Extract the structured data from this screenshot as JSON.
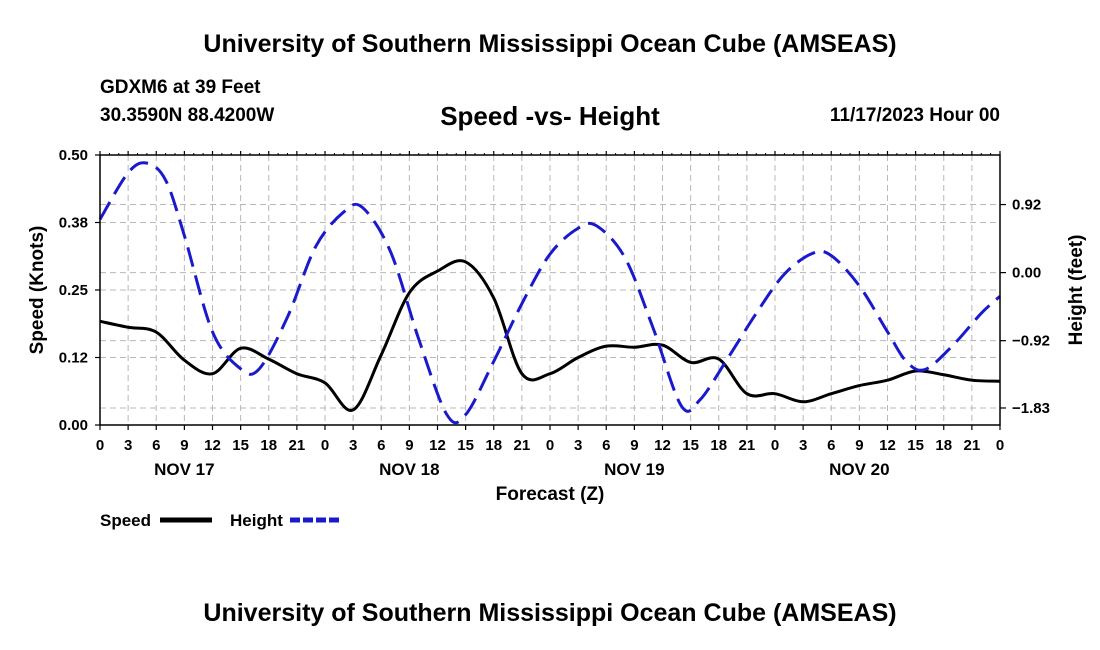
{
  "header": {
    "title": "University of Southern Mississippi Ocean Cube (AMSEAS)",
    "station": "GDXM6 at 39 Feet",
    "coords": "30.3590N  88.4200W",
    "subtitle": "Speed -vs- Height",
    "datetime": "11/17/2023 Hour 00"
  },
  "footer": {
    "title": "University of Southern Mississippi Ocean Cube (AMSEAS)"
  },
  "chart_data": {
    "type": "line",
    "title": "Speed -vs- Height",
    "xlabel": "Forecast (Z)",
    "ylabel_left": "Speed (Knots)",
    "ylabel_right": "Height (feet)",
    "x_range_hours": [
      0,
      96
    ],
    "y_left_range": [
      0,
      0.5
    ],
    "y_right_range": [
      -2.06,
      1.59
    ],
    "y_left_ticks": [
      {
        "value": 0.0,
        "label": "0.00"
      },
      {
        "value": 0.125,
        "label": "0.12"
      },
      {
        "value": 0.25,
        "label": "0.25"
      },
      {
        "value": 0.375,
        "label": "0.38"
      },
      {
        "value": 0.5,
        "label": "0.50"
      }
    ],
    "y_right_ticks": [
      {
        "value": -1.83,
        "label": "−1.83"
      },
      {
        "value": -0.92,
        "label": "−0.92"
      },
      {
        "value": 0.0,
        "label": "0.00"
      },
      {
        "value": 0.92,
        "label": "0.92"
      }
    ],
    "x_tick_labels": [
      "0",
      "3",
      "6",
      "9",
      "12",
      "15",
      "18",
      "21",
      "0",
      "3",
      "6",
      "9",
      "12",
      "15",
      "18",
      "21",
      "0",
      "3",
      "6",
      "9",
      "12",
      "15",
      "18",
      "21",
      "0",
      "3",
      "6",
      "9",
      "12",
      "15",
      "18",
      "21",
      "0"
    ],
    "day_labels": [
      {
        "label": "NOV 17",
        "hour": 9
      },
      {
        "label": "NOV 18",
        "hour": 33
      },
      {
        "label": "NOV 19",
        "hour": 57
      },
      {
        "label": "NOV 20",
        "hour": 81
      }
    ],
    "grid": true,
    "series": [
      {
        "name": "Speed",
        "axis": "left",
        "color": "#000000",
        "style": "solid",
        "points": [
          [
            0,
            0.192
          ],
          [
            3,
            0.181
          ],
          [
            6,
            0.172
          ],
          [
            9,
            0.12
          ],
          [
            12,
            0.095
          ],
          [
            15,
            0.142
          ],
          [
            18,
            0.122
          ],
          [
            21,
            0.095
          ],
          [
            24,
            0.078
          ],
          [
            27,
            0.028
          ],
          [
            30,
            0.13
          ],
          [
            33,
            0.245
          ],
          [
            36,
            0.285
          ],
          [
            39,
            0.302
          ],
          [
            42,
            0.235
          ],
          [
            45,
            0.095
          ],
          [
            48,
            0.095
          ],
          [
            51,
            0.125
          ],
          [
            54,
            0.146
          ],
          [
            57,
            0.144
          ],
          [
            60,
            0.148
          ],
          [
            63,
            0.116
          ],
          [
            66,
            0.122
          ],
          [
            69,
            0.058
          ],
          [
            72,
            0.058
          ],
          [
            75,
            0.043
          ],
          [
            78,
            0.058
          ],
          [
            81,
            0.073
          ],
          [
            84,
            0.083
          ],
          [
            87,
            0.1
          ],
          [
            90,
            0.093
          ],
          [
            93,
            0.083
          ],
          [
            96,
            0.081
          ]
        ]
      },
      {
        "name": "Height",
        "axis": "right",
        "color": "#1a1acc",
        "style": "dashed",
        "points": [
          [
            0,
            0.72
          ],
          [
            3,
            1.35
          ],
          [
            5,
            1.48
          ],
          [
            7,
            1.25
          ],
          [
            9,
            0.5
          ],
          [
            12,
            -0.8
          ],
          [
            15,
            -1.3
          ],
          [
            17,
            -1.3
          ],
          [
            20,
            -0.6
          ],
          [
            23,
            0.35
          ],
          [
            26,
            0.82
          ],
          [
            28,
            0.88
          ],
          [
            31,
            0.28
          ],
          [
            34,
            -0.9
          ],
          [
            37,
            -1.92
          ],
          [
            39,
            -1.92
          ],
          [
            42,
            -1.2
          ],
          [
            45,
            -0.42
          ],
          [
            48,
            0.25
          ],
          [
            51,
            0.6
          ],
          [
            53,
            0.63
          ],
          [
            56,
            0.2
          ],
          [
            59,
            -0.75
          ],
          [
            62,
            -1.8
          ],
          [
            64,
            -1.72
          ],
          [
            67,
            -1.15
          ],
          [
            70,
            -0.55
          ],
          [
            73,
            -0.02
          ],
          [
            76,
            0.26
          ],
          [
            78,
            0.23
          ],
          [
            81,
            -0.18
          ],
          [
            84,
            -0.8
          ],
          [
            86,
            -1.2
          ],
          [
            88,
            -1.31
          ],
          [
            91,
            -0.98
          ],
          [
            94,
            -0.55
          ],
          [
            96,
            -0.32
          ]
        ]
      }
    ]
  },
  "legend": {
    "items": [
      {
        "label": "Speed",
        "color": "#000000",
        "style": "solid"
      },
      {
        "label": "Height",
        "color": "#1a1acc",
        "style": "dashed"
      }
    ]
  }
}
